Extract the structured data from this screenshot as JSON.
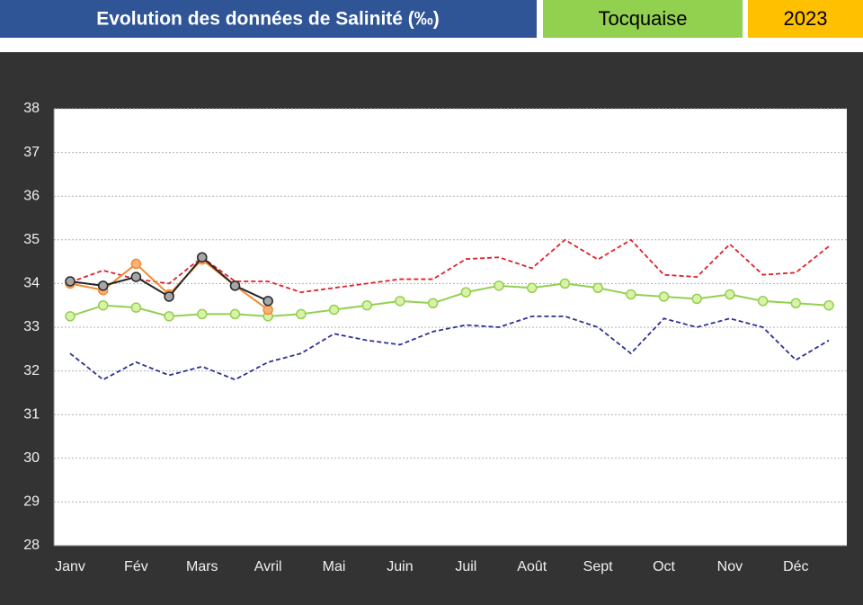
{
  "header": {
    "title": "Evolution des données de Salinité (‰)",
    "site": "Tocquaise",
    "year": "2023"
  },
  "chart_data": {
    "type": "line",
    "categories": [
      "Janv",
      null,
      "Fév",
      null,
      "Mars",
      null,
      "Avril",
      null,
      "Mai",
      null,
      "Juin",
      null,
      "Juil",
      null,
      "Août",
      null,
      "Sept",
      null,
      "Oct",
      null,
      "Nov",
      null,
      "Déc",
      null
    ],
    "series": [
      {
        "color": "#e0202a",
        "dash": true,
        "marker": false,
        "values": [
          34.03,
          34.3,
          34.1,
          34.0,
          34.6,
          34.05,
          34.05,
          33.8,
          33.9,
          34.0,
          34.1,
          34.1,
          34.56,
          34.6,
          34.35,
          35.0,
          34.55,
          35.0,
          34.2,
          34.15,
          34.9,
          34.2,
          34.25,
          34.85
        ]
      },
      {
        "color": "#2e3192",
        "dash": true,
        "marker": false,
        "values": [
          32.4,
          31.8,
          32.2,
          31.9,
          32.1,
          31.8,
          32.2,
          32.4,
          32.85,
          32.7,
          32.6,
          32.9,
          33.05,
          33.0,
          33.25,
          33.25,
          33.0,
          32.4,
          33.2,
          33.0,
          33.2,
          33.0,
          32.25,
          32.7
        ]
      },
      {
        "color": "#92d050",
        "marker_fill": "#d9f2a8",
        "dash": false,
        "marker": true,
        "values": [
          33.25,
          33.5,
          33.45,
          33.25,
          33.3,
          33.3,
          33.25,
          33.3,
          33.4,
          33.5,
          33.6,
          33.55,
          33.8,
          33.95,
          33.9,
          34.0,
          33.9,
          33.75,
          33.7,
          33.65,
          33.75,
          33.6,
          33.55,
          33.5
        ]
      },
      {
        "color": "#f28a30",
        "marker_fill": "#f8b27a",
        "dash": false,
        "marker": true,
        "values": [
          34.0,
          33.85,
          34.45,
          33.75,
          34.55,
          33.95,
          33.4,
          null,
          null,
          null,
          null,
          null,
          null,
          null,
          null,
          null,
          null,
          null,
          null,
          null,
          null,
          null,
          null,
          null
        ]
      },
      {
        "color": "#262626",
        "marker_fill": "#a6a6a6",
        "dash": false,
        "marker": true,
        "values": [
          34.05,
          33.95,
          34.15,
          33.7,
          34.6,
          33.95,
          33.6,
          null,
          null,
          null,
          null,
          null,
          null,
          null,
          null,
          null,
          null,
          null,
          null,
          null,
          null,
          null,
          null,
          null
        ]
      }
    ],
    "ylim": [
      28,
      38
    ],
    "yticks": [
      28,
      29,
      30,
      31,
      32,
      33,
      34,
      35,
      36,
      37,
      38
    ],
    "grid": true
  }
}
